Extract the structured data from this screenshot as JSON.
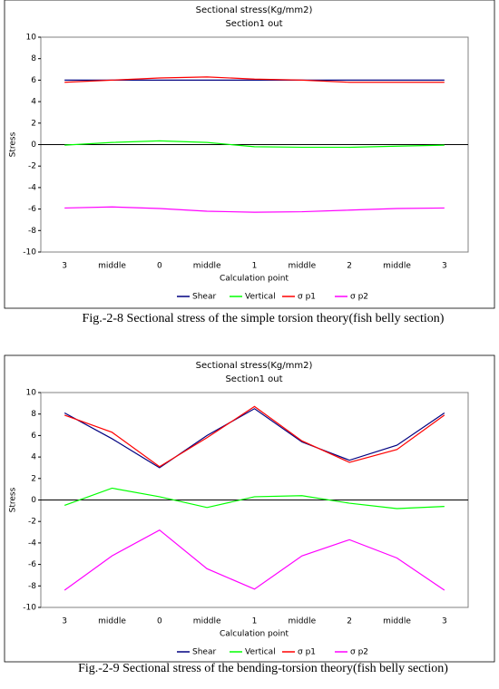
{
  "chart_data": [
    {
      "type": "line",
      "title": "Sectional stress(Kg/mm2)",
      "subtitle": "Section1 out",
      "x_label": "Calculation point",
      "y_label": "Stress",
      "categories": [
        "3",
        "middle",
        "0",
        "middle",
        "1",
        "middle",
        "2",
        "middle",
        "3"
      ],
      "ylim": [
        -10,
        10
      ],
      "yticks": [
        -10,
        -8,
        -6,
        -4,
        -2,
        0,
        2,
        4,
        6,
        8,
        10
      ],
      "series": [
        {
          "name": "Shear",
          "color": "#000080",
          "values": [
            6.0,
            6.0,
            6.0,
            6.0,
            6.0,
            6.0,
            6.0,
            6.0,
            6.0
          ]
        },
        {
          "name": "Vertical",
          "color": "#00ff00",
          "values": [
            -0.05,
            0.2,
            0.35,
            0.2,
            -0.2,
            -0.25,
            -0.25,
            -0.15,
            -0.05
          ]
        },
        {
          "name": "σ p1",
          "color": "#ff0000",
          "values": [
            5.8,
            6.0,
            6.2,
            6.3,
            6.1,
            6.0,
            5.8,
            5.8,
            5.8
          ]
        },
        {
          "name": "σ p2",
          "color": "#ff00ff",
          "values": [
            -5.9,
            -5.8,
            -5.95,
            -6.2,
            -6.3,
            -6.25,
            -6.1,
            -5.95,
            -5.9
          ]
        }
      ],
      "caption": "Fig.-2-8 Sectional stress of the simple torsion theory(fish belly section)"
    },
    {
      "type": "line",
      "title": "Sectional stress(Kg/mm2)",
      "subtitle": "Section1 out",
      "x_label": "Calculation point",
      "y_label": "Stress",
      "categories": [
        "3",
        "middle",
        "0",
        "middle",
        "1",
        "middle",
        "2",
        "middle",
        "3"
      ],
      "ylim": [
        -10,
        10
      ],
      "yticks": [
        -10,
        -8,
        -6,
        -4,
        -2,
        0,
        2,
        4,
        6,
        8,
        10
      ],
      "series": [
        {
          "name": "Shear",
          "color": "#000080",
          "values": [
            8.1,
            5.7,
            3.0,
            6.0,
            8.5,
            5.4,
            3.7,
            5.1,
            8.1
          ]
        },
        {
          "name": "Vertical",
          "color": "#00ff00",
          "values": [
            -0.5,
            1.1,
            0.3,
            -0.7,
            0.3,
            0.4,
            -0.3,
            -0.8,
            -0.6
          ]
        },
        {
          "name": "σ p1",
          "color": "#ff0000",
          "values": [
            7.9,
            6.3,
            3.1,
            5.8,
            8.7,
            5.5,
            3.5,
            4.7,
            7.9
          ]
        },
        {
          "name": "σ p2",
          "color": "#ff00ff",
          "values": [
            -8.4,
            -5.2,
            -2.8,
            -6.4,
            -8.3,
            -5.2,
            -3.7,
            -5.4,
            -8.4
          ]
        }
      ],
      "caption": "Fig.-2-9 Sectional stress of the bending-torsion theory(fish belly section)"
    }
  ]
}
